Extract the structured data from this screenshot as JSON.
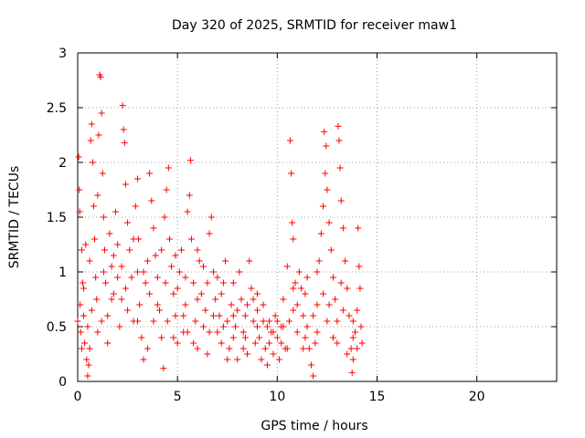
{
  "chart_data": {
    "type": "scatter",
    "title": "Day 320 of 2025, SRMTID for receiver maw1",
    "xlabel": "GPS time / hours",
    "ylabel": "SRMTID / TECUs",
    "xlim": [
      0,
      24
    ],
    "ylim": [
      0,
      3
    ],
    "x_ticks": [
      0,
      5,
      10,
      15,
      20
    ],
    "y_ticks": [
      0,
      0.5,
      1,
      1.5,
      2,
      2.5,
      3
    ],
    "x_tick_labels": [
      "0",
      "5",
      "10",
      "15",
      "20"
    ],
    "y_tick_labels": [
      "0",
      "0.5",
      "1",
      "1.5",
      "2",
      "2.5",
      "3"
    ],
    "grid": true,
    "marker": "+",
    "series": [
      {
        "name": "SRMTID",
        "points": [
          [
            0.0,
            0.55
          ],
          [
            0.05,
            2.05
          ],
          [
            0.08,
            1.75
          ],
          [
            0.1,
            1.55
          ],
          [
            0.12,
            0.7
          ],
          [
            0.15,
            0.45
          ],
          [
            0.2,
            1.2
          ],
          [
            0.25,
            0.9
          ],
          [
            0.3,
            0.6
          ],
          [
            0.35,
            0.35
          ],
          [
            0.4,
            1.25
          ],
          [
            0.45,
            0.2
          ],
          [
            0.5,
            0.05
          ],
          [
            0.55,
            0.15
          ],
          [
            0.6,
            0.3
          ],
          [
            0.65,
            2.2
          ],
          [
            0.7,
            2.35
          ],
          [
            0.75,
            2.0
          ],
          [
            0.8,
            1.6
          ],
          [
            0.85,
            1.3
          ],
          [
            0.9,
            0.95
          ],
          [
            0.95,
            0.75
          ],
          [
            1.0,
            1.7
          ],
          [
            1.05,
            2.25
          ],
          [
            1.1,
            2.8
          ],
          [
            1.15,
            2.78
          ],
          [
            1.2,
            2.45
          ],
          [
            1.25,
            1.9
          ],
          [
            1.3,
            1.5
          ],
          [
            1.35,
            1.2
          ],
          [
            1.4,
            0.9
          ],
          [
            1.5,
            0.6
          ],
          [
            1.6,
            1.35
          ],
          [
            1.7,
            1.05
          ],
          [
            1.8,
            0.8
          ],
          [
            1.9,
            1.55
          ],
          [
            2.0,
            1.25
          ],
          [
            2.1,
            0.5
          ],
          [
            2.2,
            0.75
          ],
          [
            2.25,
            2.52
          ],
          [
            2.3,
            2.3
          ],
          [
            2.35,
            2.18
          ],
          [
            2.4,
            1.8
          ],
          [
            2.5,
            1.45
          ],
          [
            2.6,
            1.2
          ],
          [
            2.7,
            0.95
          ],
          [
            2.8,
            0.55
          ],
          [
            2.9,
            1.6
          ],
          [
            3.0,
            1.85
          ],
          [
            3.05,
            1.3
          ],
          [
            3.1,
            0.7
          ],
          [
            3.2,
            0.4
          ],
          [
            3.3,
            0.2
          ],
          [
            3.4,
            0.9
          ],
          [
            3.5,
            1.1
          ],
          [
            3.6,
            1.9
          ],
          [
            3.7,
            1.65
          ],
          [
            3.8,
            1.4
          ],
          [
            3.9,
            1.15
          ],
          [
            4.0,
            0.95
          ],
          [
            4.1,
            0.65
          ],
          [
            4.2,
            0.4
          ],
          [
            4.3,
            0.12
          ],
          [
            4.35,
            1.5
          ],
          [
            4.45,
            1.75
          ],
          [
            4.55,
            1.95
          ],
          [
            4.6,
            1.3
          ],
          [
            4.7,
            1.05
          ],
          [
            4.8,
            0.8
          ],
          [
            4.9,
            0.6
          ],
          [
            5.0,
            0.35
          ],
          [
            5.1,
            1.0
          ],
          [
            5.2,
            1.2
          ],
          [
            5.3,
            0.45
          ],
          [
            5.4,
            0.7
          ],
          [
            5.5,
            1.55
          ],
          [
            5.6,
            1.7
          ],
          [
            5.65,
            2.02
          ],
          [
            5.7,
            1.3
          ],
          [
            5.8,
            0.9
          ],
          [
            5.9,
            0.55
          ],
          [
            6.0,
            0.3
          ],
          [
            6.1,
            1.1
          ],
          [
            6.2,
            0.8
          ],
          [
            6.3,
            0.5
          ],
          [
            6.4,
            0.65
          ],
          [
            6.5,
            0.25
          ],
          [
            6.6,
            1.35
          ],
          [
            6.7,
            1.5
          ],
          [
            6.8,
            1.0
          ],
          [
            6.9,
            0.75
          ],
          [
            7.0,
            0.45
          ],
          [
            7.1,
            0.6
          ],
          [
            7.2,
            0.35
          ],
          [
            7.3,
            0.9
          ],
          [
            7.4,
            1.1
          ],
          [
            7.5,
            0.55
          ],
          [
            7.6,
            0.3
          ],
          [
            7.7,
            0.7
          ],
          [
            7.8,
            0.4
          ],
          [
            7.9,
            0.5
          ],
          [
            8.0,
            0.2
          ],
          [
            8.1,
            1.0
          ],
          [
            8.2,
            0.75
          ],
          [
            8.3,
            0.45
          ],
          [
            8.4,
            0.6
          ],
          [
            8.5,
            0.25
          ],
          [
            8.6,
            1.1
          ],
          [
            8.7,
            0.85
          ],
          [
            8.8,
            0.55
          ],
          [
            8.9,
            0.35
          ],
          [
            9.0,
            0.65
          ],
          [
            9.1,
            0.4
          ],
          [
            9.2,
            0.2
          ],
          [
            9.3,
            0.55
          ],
          [
            9.4,
            0.3
          ],
          [
            9.5,
            0.5
          ],
          [
            9.6,
            0.35
          ],
          [
            9.7,
            0.45
          ],
          [
            9.8,
            0.25
          ],
          [
            9.9,
            0.6
          ],
          [
            10.0,
            0.4
          ],
          [
            10.1,
            0.2
          ],
          [
            10.2,
            0.5
          ],
          [
            10.3,
            0.75
          ],
          [
            10.4,
            0.3
          ],
          [
            10.5,
            1.05
          ],
          [
            10.6,
            0.55
          ],
          [
            10.65,
            2.2
          ],
          [
            10.7,
            1.9
          ],
          [
            10.75,
            1.45
          ],
          [
            10.8,
            1.3
          ],
          [
            10.9,
            0.9
          ],
          [
            11.0,
            0.7
          ],
          [
            11.1,
            1.0
          ],
          [
            11.2,
            0.85
          ],
          [
            11.3,
            0.6
          ],
          [
            11.4,
            0.4
          ],
          [
            11.5,
            0.5
          ],
          [
            11.6,
            0.3
          ],
          [
            11.7,
            0.15
          ],
          [
            11.8,
            0.05
          ],
          [
            11.9,
            0.35
          ],
          [
            12.0,
            0.7
          ],
          [
            12.1,
            1.1
          ],
          [
            12.2,
            1.35
          ],
          [
            12.3,
            1.6
          ],
          [
            12.35,
            2.28
          ],
          [
            12.4,
            1.9
          ],
          [
            12.45,
            2.15
          ],
          [
            12.5,
            1.75
          ],
          [
            12.6,
            1.45
          ],
          [
            12.7,
            1.2
          ],
          [
            12.8,
            0.95
          ],
          [
            12.9,
            0.75
          ],
          [
            13.0,
            0.55
          ],
          [
            13.05,
            2.33
          ],
          [
            13.1,
            2.2
          ],
          [
            13.15,
            1.95
          ],
          [
            13.2,
            1.65
          ],
          [
            13.3,
            1.4
          ],
          [
            13.4,
            1.1
          ],
          [
            13.5,
            0.85
          ],
          [
            13.6,
            0.6
          ],
          [
            13.7,
            0.3
          ],
          [
            13.75,
            0.08
          ],
          [
            13.8,
            0.2
          ],
          [
            13.9,
            0.45
          ],
          [
            14.0,
            0.65
          ],
          [
            14.05,
            1.4
          ],
          [
            14.1,
            1.05
          ],
          [
            14.15,
            0.85
          ],
          [
            14.2,
            0.5
          ],
          [
            14.25,
            0.35
          ],
          [
            0.3,
            0.85
          ],
          [
            0.6,
            1.1
          ],
          [
            1.2,
            0.55
          ],
          [
            1.8,
            1.15
          ],
          [
            2.4,
            0.85
          ],
          [
            3.0,
            0.55
          ],
          [
            3.6,
            0.8
          ],
          [
            4.2,
            1.2
          ],
          [
            4.8,
            0.4
          ],
          [
            5.4,
            0.95
          ],
          [
            6.0,
            0.75
          ],
          [
            6.6,
            0.45
          ],
          [
            7.2,
            0.8
          ],
          [
            7.8,
            0.6
          ],
          [
            8.4,
            0.4
          ],
          [
            9.0,
            0.5
          ],
          [
            9.6,
            0.55
          ],
          [
            10.2,
            0.35
          ],
          [
            10.8,
            0.65
          ],
          [
            11.4,
            0.8
          ],
          [
            12.0,
            0.45
          ],
          [
            12.6,
            0.7
          ],
          [
            13.2,
            0.9
          ],
          [
            13.8,
            0.55
          ],
          [
            1.0,
            0.45
          ],
          [
            2.0,
            0.95
          ],
          [
            3.0,
            1.0
          ],
          [
            4.0,
            0.7
          ],
          [
            5.0,
            0.85
          ],
          [
            6.0,
            1.2
          ],
          [
            7.0,
            0.95
          ],
          [
            8.0,
            0.65
          ],
          [
            9.0,
            0.8
          ],
          [
            10.0,
            0.55
          ],
          [
            11.0,
            0.45
          ],
          [
            12.0,
            1.0
          ],
          [
            13.0,
            0.35
          ],
          [
            14.0,
            0.3
          ],
          [
            0.5,
            0.5
          ],
          [
            1.5,
            0.35
          ],
          [
            2.5,
            0.65
          ],
          [
            3.5,
            0.3
          ],
          [
            4.5,
            0.55
          ],
          [
            5.5,
            0.45
          ],
          [
            6.5,
            0.9
          ],
          [
            7.5,
            0.2
          ],
          [
            8.5,
            0.7
          ],
          [
            9.5,
            0.15
          ],
          [
            10.5,
            0.3
          ],
          [
            11.5,
            0.95
          ],
          [
            12.5,
            0.55
          ],
          [
            13.5,
            0.25
          ],
          [
            0.2,
            0.3
          ],
          [
            0.7,
            0.65
          ],
          [
            1.3,
            1.0
          ],
          [
            1.7,
            0.75
          ],
          [
            2.2,
            1.05
          ],
          [
            2.8,
            1.3
          ],
          [
            3.3,
            1.0
          ],
          [
            3.8,
            0.55
          ],
          [
            4.4,
            0.9
          ],
          [
            4.9,
            1.15
          ],
          [
            5.3,
            0.6
          ],
          [
            5.8,
            0.35
          ],
          [
            6.3,
            1.05
          ],
          [
            6.8,
            0.6
          ],
          [
            7.3,
            0.5
          ],
          [
            7.8,
            0.9
          ],
          [
            8.3,
            0.3
          ],
          [
            8.8,
            0.75
          ],
          [
            9.3,
            0.7
          ],
          [
            9.8,
            0.45
          ],
          [
            10.3,
            0.5
          ],
          [
            10.8,
            0.85
          ],
          [
            11.3,
            0.3
          ],
          [
            11.8,
            0.6
          ],
          [
            12.3,
            0.8
          ],
          [
            12.8,
            0.4
          ],
          [
            13.3,
            0.65
          ],
          [
            13.8,
            0.4
          ]
        ]
      }
    ]
  }
}
